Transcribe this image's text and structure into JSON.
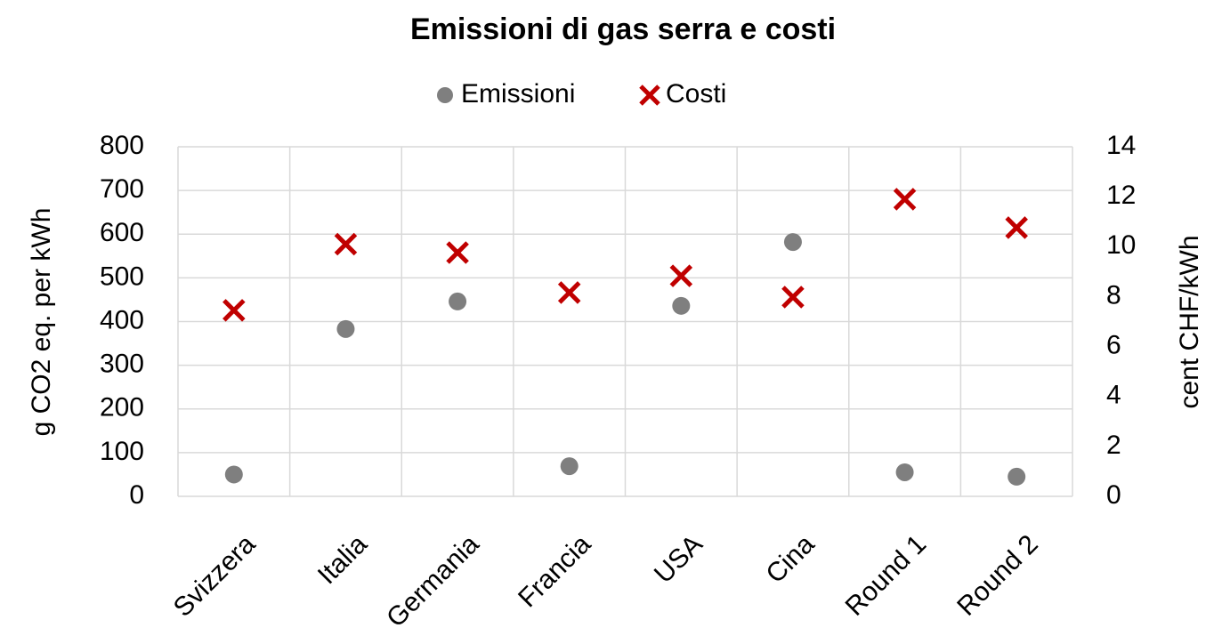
{
  "chart_data": {
    "type": "scatter",
    "title": "Emissioni di gas serra e costi",
    "categories": [
      "Svizzera",
      "Italia",
      "Germania",
      "Francia",
      "USA",
      "Cina",
      "Round 1",
      "Round 2"
    ],
    "series": [
      {
        "name": "Emissioni",
        "color": "#7f7f7f",
        "values": [
          50,
          383,
          446,
          69,
          436,
          582,
          55,
          45
        ]
      },
      {
        "name": "Costi",
        "color": "#c00000",
        "axis": "y2",
        "values": [
          7.45,
          10.1,
          9.76,
          8.16,
          8.83,
          7.98,
          11.9,
          10.76
        ]
      }
    ],
    "ylabel": "g CO2 eq. per kWh",
    "y2label": "cent CHF/kWh",
    "ylim": [
      0,
      800
    ],
    "yticks": [
      0,
      100,
      200,
      300,
      400,
      500,
      600,
      700,
      800
    ],
    "y2lim": [
      0,
      14
    ],
    "y2ticks": [
      0,
      2,
      4,
      6,
      8,
      10,
      12,
      14
    ],
    "grid": true,
    "legend": "top"
  }
}
